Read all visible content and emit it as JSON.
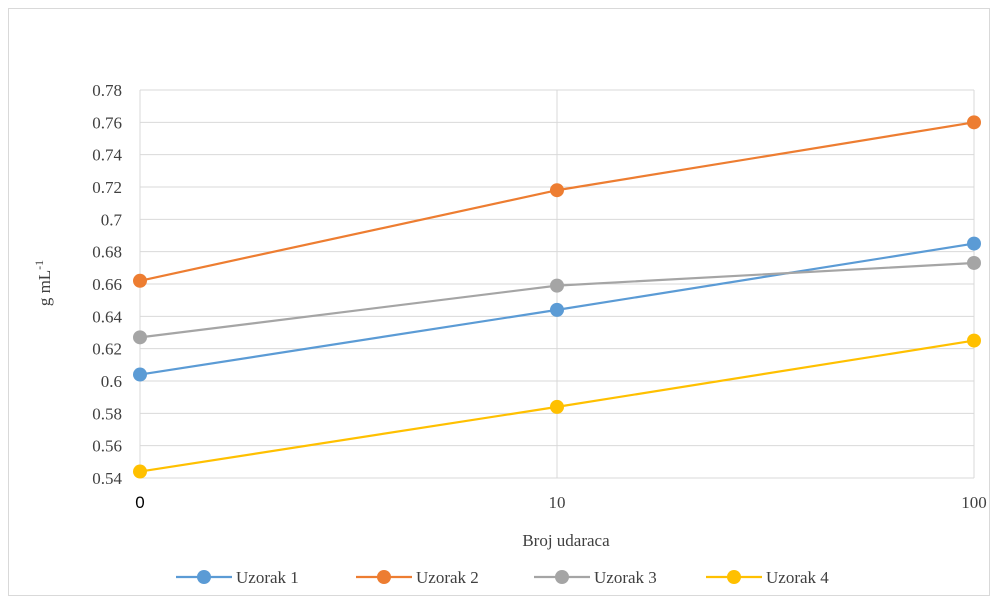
{
  "chart_data": {
    "type": "line",
    "title": "",
    "xlabel": "Broj udaraca",
    "ylabel": "g mL",
    "ylabel_superscript": "-1",
    "x": [
      "0",
      "10",
      "100"
    ],
    "x_scale": "log",
    "ylim": [
      0.54,
      0.78
    ],
    "y_ticks": [
      "0.54",
      "0.56",
      "0.58",
      "0.6",
      "0.62",
      "0.64",
      "0.66",
      "0.68",
      "0.7",
      "0.72",
      "0.74",
      "0.76",
      "0.78"
    ],
    "grid": true,
    "legend_position": "bottom",
    "series": [
      {
        "name": "Uzorak 1",
        "color": "#5b9bd5",
        "values": [
          0.604,
          0.644,
          0.685
        ]
      },
      {
        "name": "Uzorak 2",
        "color": "#ed7d31",
        "values": [
          0.662,
          0.718,
          0.76
        ]
      },
      {
        "name": "Uzorak 3",
        "color": "#a5a5a5",
        "values": [
          0.627,
          0.659,
          0.673
        ]
      },
      {
        "name": "Uzorak 4",
        "color": "#ffc000",
        "values": [
          0.544,
          0.584,
          0.625
        ]
      }
    ]
  }
}
